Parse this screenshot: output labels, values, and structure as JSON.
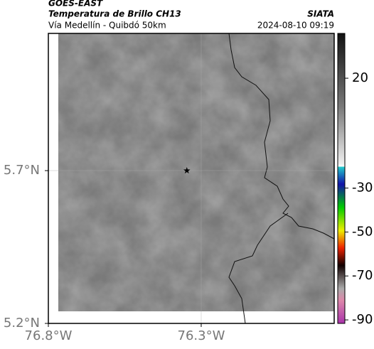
{
  "header": {
    "title": "GOES-EAST",
    "subtitle": "Temperatura de Brillo CH13",
    "location": "Vía Medellín - Quibdó 50km",
    "source": "SIATA",
    "timestamp": "2024-08-10 09:19"
  },
  "map": {
    "xlim": [
      -76.8,
      -75.865
    ],
    "ylim": [
      5.2,
      6.149
    ],
    "xticks": [
      {
        "value": -76.8,
        "label": "76.8°W"
      },
      {
        "value": -76.3,
        "label": "76.3°W"
      }
    ],
    "yticks": [
      {
        "value": 5.7,
        "label": "5.7°N"
      },
      {
        "value": 5.2,
        "label": "5.2°N"
      }
    ],
    "marker": {
      "lon": -76.347,
      "lat": 5.7
    },
    "colorbar": {
      "lim": [
        -91.6,
        40.4
      ],
      "ticks": [
        20,
        -30,
        -50,
        -70,
        -90
      ]
    }
  }
}
